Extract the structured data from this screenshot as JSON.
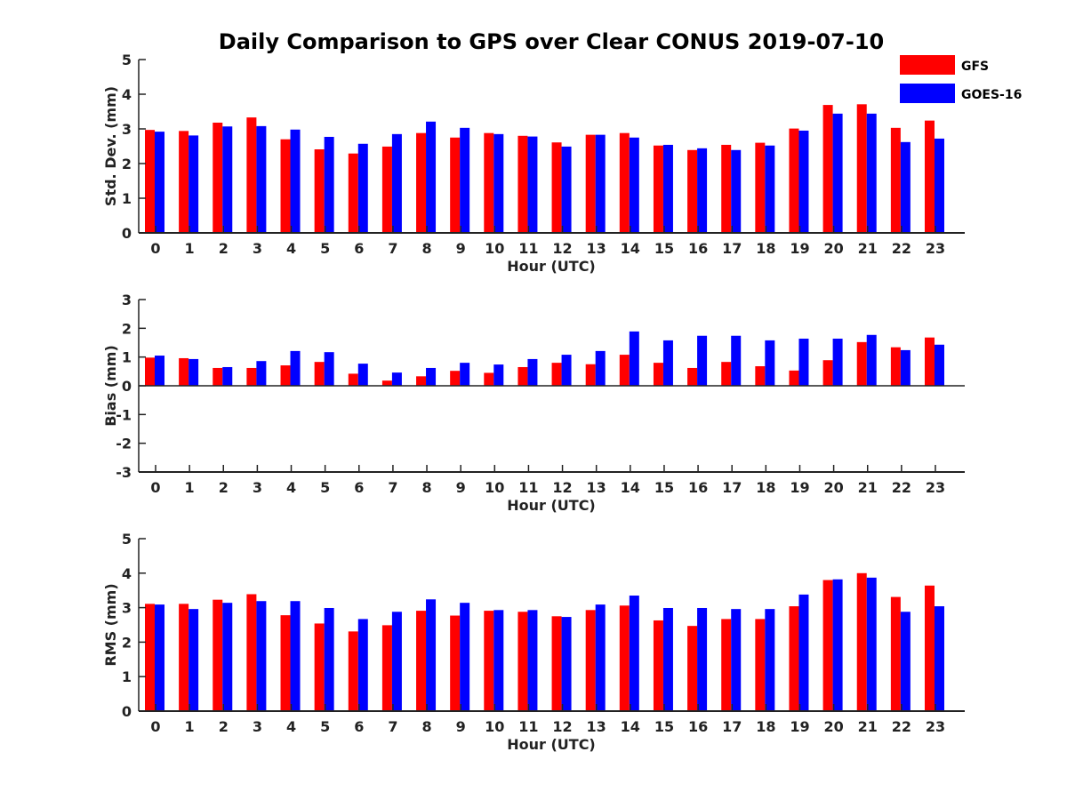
{
  "chart_data": {
    "type": "bar",
    "title": "Daily Comparison to GPS over Clear CONUS 2019-07-10",
    "categories": [
      "0",
      "1",
      "2",
      "3",
      "4",
      "5",
      "6",
      "7",
      "8",
      "9",
      "10",
      "11",
      "12",
      "13",
      "14",
      "15",
      "16",
      "17",
      "18",
      "19",
      "20",
      "21",
      "22",
      "23"
    ],
    "legend": {
      "placement": "top-right",
      "entries": [
        {
          "name": "GFS",
          "color": "#ff0000"
        },
        {
          "name": "GOES-16",
          "color": "#0000ff"
        }
      ]
    },
    "panels": [
      {
        "id": "std",
        "xlabel": "Hour (UTC)",
        "ylabel": "Std. Dev. (mm)",
        "ylim": [
          0,
          5
        ],
        "yticks": [
          "0",
          "1",
          "2",
          "3",
          "4",
          "5"
        ],
        "series": [
          {
            "name": "GFS",
            "color": "#ff0000",
            "values": [
              2.97,
              2.94,
              3.18,
              3.33,
              2.7,
              2.41,
              2.29,
              2.49,
              2.88,
              2.75,
              2.88,
              2.8,
              2.61,
              2.83,
              2.88,
              2.52,
              2.39,
              2.54,
              2.6,
              3.01,
              3.69,
              3.71,
              3.03,
              3.24
            ]
          },
          {
            "name": "GOES-16",
            "color": "#0000ff",
            "values": [
              2.92,
              2.81,
              3.07,
              3.08,
              2.98,
              2.77,
              2.57,
              2.85,
              3.21,
              3.03,
              2.85,
              2.78,
              2.49,
              2.83,
              2.75,
              2.54,
              2.44,
              2.39,
              2.52,
              2.95,
              3.44,
              3.44,
              2.62,
              2.72
            ]
          }
        ]
      },
      {
        "id": "bias",
        "xlabel": "Hour (UTC)",
        "ylabel": "Bias (mm)",
        "ylim": [
          -3,
          3
        ],
        "yticks": [
          "-3",
          "-2",
          "-1",
          "0",
          "1",
          "2",
          "3"
        ],
        "series": [
          {
            "name": "GFS",
            "color": "#ff0000",
            "values": [
              0.98,
              0.96,
              0.62,
              0.62,
              0.71,
              0.83,
              0.42,
              0.18,
              0.33,
              0.52,
              0.45,
              0.65,
              0.8,
              0.75,
              1.08,
              0.8,
              0.62,
              0.83,
              0.68,
              0.53,
              0.89,
              1.52,
              1.34,
              1.68
            ]
          },
          {
            "name": "GOES-16",
            "color": "#0000ff",
            "values": [
              1.05,
              0.93,
              0.65,
              0.86,
              1.21,
              1.17,
              0.77,
              0.46,
              0.62,
              0.8,
              0.74,
              0.93,
              1.08,
              1.21,
              1.89,
              1.58,
              1.74,
              1.74,
              1.58,
              1.64,
              1.64,
              1.77,
              1.24,
              1.43
            ]
          }
        ]
      },
      {
        "id": "rms",
        "xlabel": "Hour (UTC)",
        "ylabel": "RMS (mm)",
        "ylim": [
          0,
          5
        ],
        "yticks": [
          "0",
          "1",
          "2",
          "3",
          "4",
          "5"
        ],
        "series": [
          {
            "name": "GFS",
            "color": "#ff0000",
            "values": [
              3.11,
              3.11,
              3.23,
              3.39,
              2.78,
              2.54,
              2.31,
              2.49,
              2.91,
              2.77,
              2.91,
              2.88,
              2.75,
              2.93,
              3.06,
              2.63,
              2.47,
              2.67,
              2.67,
              3.04,
              3.8,
              4.0,
              3.31,
              3.64
            ]
          },
          {
            "name": "GOES-16",
            "color": "#0000ff",
            "values": [
              3.09,
              2.96,
              3.14,
              3.19,
              3.19,
              2.99,
              2.67,
              2.88,
              3.24,
              3.14,
              2.93,
              2.93,
              2.73,
              3.09,
              3.35,
              2.99,
              2.99,
              2.96,
              2.96,
              3.38,
              3.82,
              3.87,
              2.88,
              3.04
            ]
          }
        ]
      }
    ]
  }
}
